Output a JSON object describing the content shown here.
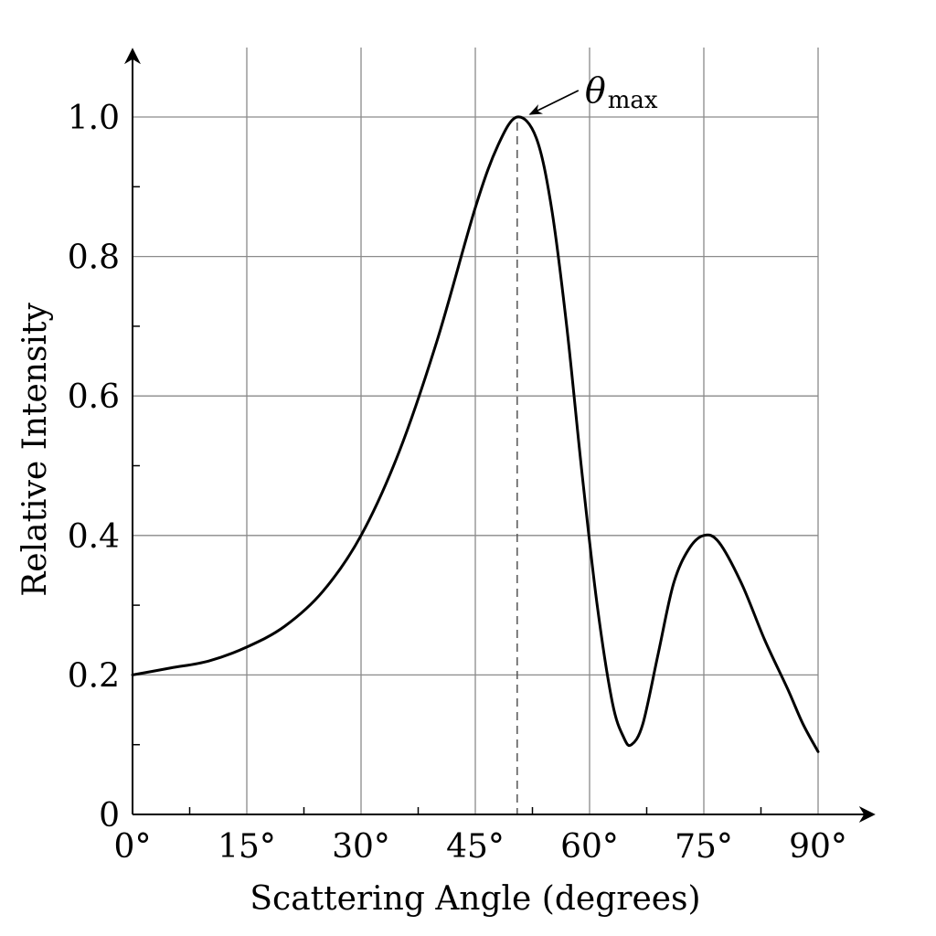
{
  "chart_data": {
    "type": "line",
    "xlabel": "Scattering Angle (degrees)",
    "ylabel": "Relative Intensity",
    "xlim": [
      0,
      90
    ],
    "ylim": [
      0,
      1.0
    ],
    "grid": true,
    "x_ticks": [
      0,
      15,
      30,
      45,
      60,
      75,
      90
    ],
    "x_tick_labels": [
      "0°",
      "15°",
      "30°",
      "45°",
      "60°",
      "75°",
      "90°"
    ],
    "y_ticks": [
      0,
      0.2,
      0.4,
      0.6,
      0.8,
      1.0
    ],
    "y_tick_labels": [
      "0",
      "0.2",
      "0.4",
      "0.6",
      "0.8",
      "1.0"
    ],
    "series": [
      {
        "color": "#000000",
        "points": [
          [
            0,
            0.2
          ],
          [
            5,
            0.21
          ],
          [
            10,
            0.22
          ],
          [
            15,
            0.24
          ],
          [
            20,
            0.27
          ],
          [
            25,
            0.32
          ],
          [
            30,
            0.4
          ],
          [
            35,
            0.52
          ],
          [
            40,
            0.68
          ],
          [
            45,
            0.87
          ],
          [
            48,
            0.96
          ],
          [
            50.5,
            1.0
          ],
          [
            53,
            0.97
          ],
          [
            55,
            0.87
          ],
          [
            57,
            0.7
          ],
          [
            59,
            0.49
          ],
          [
            61,
            0.3
          ],
          [
            63,
            0.16
          ],
          [
            64.5,
            0.11
          ],
          [
            65.5,
            0.1
          ],
          [
            67,
            0.13
          ],
          [
            69,
            0.23
          ],
          [
            71,
            0.33
          ],
          [
            73,
            0.38
          ],
          [
            75,
            0.4
          ],
          [
            77,
            0.39
          ],
          [
            80,
            0.33
          ],
          [
            83,
            0.25
          ],
          [
            86,
            0.18
          ],
          [
            88,
            0.13
          ],
          [
            90,
            0.09
          ]
        ]
      }
    ],
    "annotations": [
      {
        "label_symbol": "θ",
        "label_subscript": "max",
        "x": 50.5,
        "y": 1.0,
        "style": "arrow to peak, dashed vertical line down to x-axis"
      }
    ]
  }
}
